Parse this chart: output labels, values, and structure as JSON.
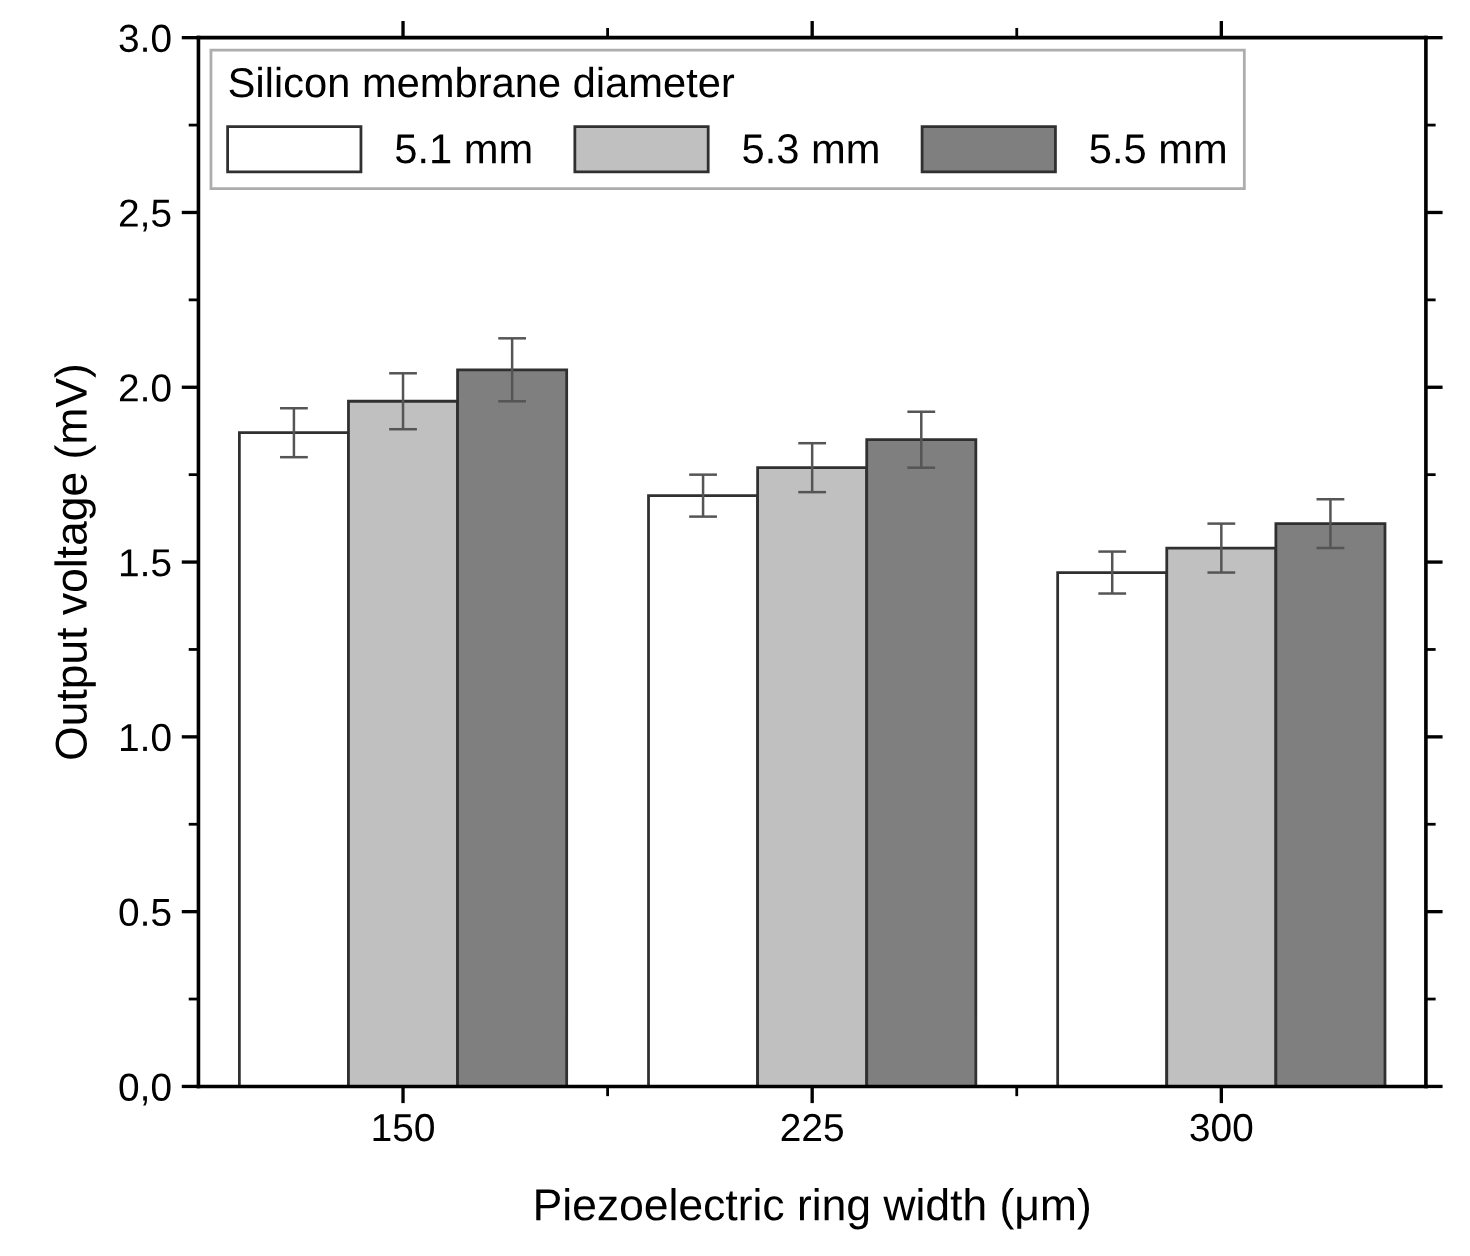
{
  "chart_data": {
    "type": "bar",
    "xlabel": "Piezoelectric ring width (μm)",
    "ylabel": "Output voltage (mV)",
    "legend_title": "Silicon membrane diameter",
    "categories": [
      "150",
      "225",
      "300"
    ],
    "series": [
      {
        "name": "5.1 mm",
        "color": "#ffffff",
        "values": [
          1.87,
          1.69,
          1.47
        ],
        "errors": [
          0.07,
          0.06,
          0.06
        ]
      },
      {
        "name": "5.3 mm",
        "color": "#c0c0c0",
        "values": [
          1.96,
          1.77,
          1.54
        ],
        "errors": [
          0.08,
          0.07,
          0.07
        ]
      },
      {
        "name": "5.5 mm",
        "color": "#7f7f7f",
        "values": [
          2.05,
          1.85,
          1.61
        ],
        "errors": [
          0.09,
          0.08,
          0.07
        ]
      }
    ],
    "ylim": [
      0,
      3.0
    ],
    "yticks": [
      {
        "value": 0,
        "label": "0,0"
      },
      {
        "value": 0.5,
        "label": "0.5"
      },
      {
        "value": 1,
        "label": "1.0"
      },
      {
        "value": 1.5,
        "label": "1.5"
      },
      {
        "value": 2,
        "label": "2.0"
      },
      {
        "value": 2.5,
        "label": "2,5"
      },
      {
        "value": 3,
        "label": "3.0"
      }
    ],
    "grid": false,
    "legend": "top left"
  }
}
